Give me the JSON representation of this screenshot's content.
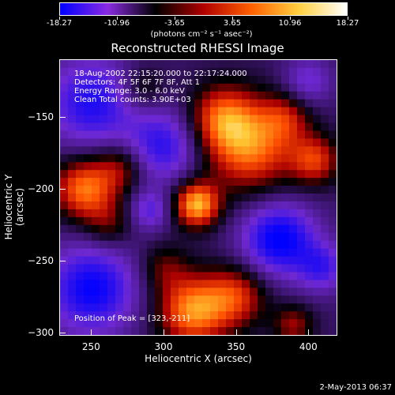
{
  "colorbar": {
    "ticks": [
      "-18.27",
      "-10.96",
      "-3.65",
      "3.65",
      "10.96",
      "18.27"
    ],
    "units": "(photons cm⁻² s⁻¹ asec⁻²)",
    "colors": [
      "#0000ff",
      "#8a2be2",
      "#000000",
      "#b00000",
      "#ff6000",
      "#ffd040",
      "#ffffff"
    ]
  },
  "chart_data": {
    "type": "heatmap",
    "title": "Reconstructed RHESSI Image",
    "xlabel": "Heliocentric X (arcsec)",
    "ylabel": "Heliocentric Y (arcsec)",
    "xlim": [
      228,
      420
    ],
    "ylim": [
      -302,
      -110
    ],
    "xticks": [
      250,
      300,
      350,
      400
    ],
    "yticks": [
      -150,
      -200,
      -250,
      -300
    ],
    "value_range": [
      -18.27,
      18.27
    ],
    "peak": [
      323,
      -211
    ],
    "annotations": {
      "time": "18-Aug-2002 22:15:20.000 to 22:17:24.000",
      "detectors": "Detectors: 4F 5F 6F 7F 8F, Att 1",
      "energy": "Energy Range: 3.0 - 6.0 keV",
      "clean": "Clean    Total counts: 3.90E+03",
      "peak_text": "Position of Peak = [323,-211]"
    },
    "blobs": [
      {
        "x": 323,
        "y": -211,
        "value": 18.0,
        "sigma": 11
      },
      {
        "x": 360,
        "y": -170,
        "value": 15.0,
        "sigma": 22
      },
      {
        "x": 340,
        "y": -150,
        "value": 11.0,
        "sigma": 16
      },
      {
        "x": 245,
        "y": -200,
        "value": 15.0,
        "sigma": 15
      },
      {
        "x": 270,
        "y": -185,
        "value": 8.0,
        "sigma": 12
      },
      {
        "x": 262,
        "y": -225,
        "value": 6.0,
        "sigma": 12
      },
      {
        "x": 320,
        "y": -285,
        "value": 16.0,
        "sigma": 17
      },
      {
        "x": 350,
        "y": -275,
        "value": 11.0,
        "sigma": 15
      },
      {
        "x": 300,
        "y": -255,
        "value": 6.0,
        "sigma": 12
      },
      {
        "x": 390,
        "y": -295,
        "value": 8.0,
        "sigma": 10
      },
      {
        "x": 405,
        "y": -180,
        "value": 11.0,
        "sigma": 12
      },
      {
        "x": 385,
        "y": -150,
        "value": 7.0,
        "sigma": 12
      },
      {
        "x": 285,
        "y": -130,
        "value": 6.0,
        "sigma": 11
      },
      {
        "x": 250,
        "y": -140,
        "value": -12.0,
        "sigma": 22
      },
      {
        "x": 300,
        "y": -170,
        "value": -11.0,
        "sigma": 18
      },
      {
        "x": 250,
        "y": -270,
        "value": -14.0,
        "sigma": 22
      },
      {
        "x": 380,
        "y": -235,
        "value": -15.0,
        "sigma": 18
      },
      {
        "x": 410,
        "y": -255,
        "value": -9.0,
        "sigma": 12
      },
      {
        "x": 400,
        "y": -125,
        "value": -7.0,
        "sigma": 12
      },
      {
        "x": 290,
        "y": -215,
        "value": -8.0,
        "sigma": 10
      }
    ]
  },
  "timestamp": "2-May-2013 06:37"
}
